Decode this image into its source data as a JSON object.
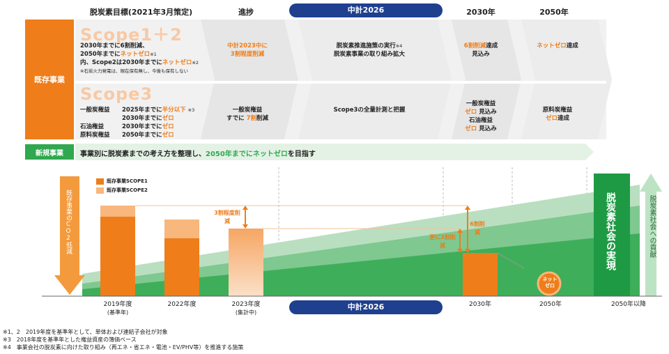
{
  "header": {
    "col_target": "脱炭素目標(2021年3月策定)",
    "col_progress": "進捗",
    "col_plan": "中計2026",
    "col_2030": "2030年",
    "col_2050": "2050年"
  },
  "existing_label": "既存事業",
  "new_label": "新規事業",
  "scope12": {
    "title": "Scope1＋2",
    "line1": "2030年までに6割削減、",
    "line2a": "2050年までに",
    "line2b": "ネットゼロ",
    "line2c": "※1",
    "line3a": "内、Scope2は2030年までに",
    "line3b": "ネットゼロ",
    "line3c": "※2",
    "note": "※石炭火力発電は、現在保有無し、今後も保有しない",
    "progress1": "中計2023中に",
    "progress2": "3割程度削減",
    "plan1": "脱炭素推進施策の実行",
    "plan1_note": "※4",
    "plan2": "脱炭素事業の取り組み拡大",
    "y2030a": "6割削減",
    "y2030b": "達成",
    "y2030c": "見込み",
    "y2050a": "ネットゼロ",
    "y2050b": "達成"
  },
  "scope3": {
    "title": "Scope3",
    "r1_label": "一般炭権益",
    "r1_text": "2025年までに",
    "r1_hl": "半分以下",
    "r1_note": "※3",
    "r2_text": "2030年までに",
    "r2_hl": "ゼロ",
    "r3_label": "石油権益",
    "r3_text": "2030年までに",
    "r3_hl": "ゼロ",
    "r4_label": "原料炭権益",
    "r4_text": "2050年までに",
    "r4_hl": "ゼロ",
    "progress1": "一般炭権益",
    "progress2a": "すでに",
    "progress2b": "7割",
    "progress2c": "削減",
    "plan": "Scope3の全量計測と把握",
    "y2030_1": "一般炭権益",
    "y2030_2a": "ゼロ",
    "y2030_2b": "見込み",
    "y2030_3": "石油権益",
    "y2030_4a": "ゼロ",
    "y2030_4b": "見込み",
    "y2050_1": "原料炭権益",
    "y2050_2a": "ゼロ",
    "y2050_2b": "達成"
  },
  "new_business": {
    "text_a": "事業別に脱炭素までの考え方を整理し、",
    "text_b": "2050年までにネットゼロ",
    "text_c": "を目指す"
  },
  "chart": {
    "left_arrow": "既存事業のCO2低減",
    "legend1": "既存事業SCOPE1",
    "legend2": "既存事業SCOPE2",
    "ann_30": "3割程度削減",
    "ann_more": "更に3割削減",
    "ann_60": "6割削減",
    "netzero_badge": "ネットゼロ",
    "realization": "脱炭素社会の実現",
    "contribution": "脱炭素社会への貢献",
    "x1": "2019年度",
    "x1b": "(基準年)",
    "x2": "2022年度",
    "x3": "2023年度",
    "x3b": "(集計中)",
    "x_plan": "中計2026",
    "x4": "2030年",
    "x5": "2050年",
    "x6": "2050年以降"
  },
  "colors": {
    "orange": "#ee7d1a",
    "light_orange": "#f8b77c",
    "green": "#2fa84f",
    "navy": "#1f3f8f"
  },
  "footnotes": [
    "※1、2　2019年度を基準年として、単体および連結子会社が対象",
    "※3　2018年度を基準年とした権益資産の簿価ベース",
    "※4　事業会社の脱炭素に向けた取り組み（再エネ・省エネ・電池・EV/PHV等）を推進する施策"
  ]
}
